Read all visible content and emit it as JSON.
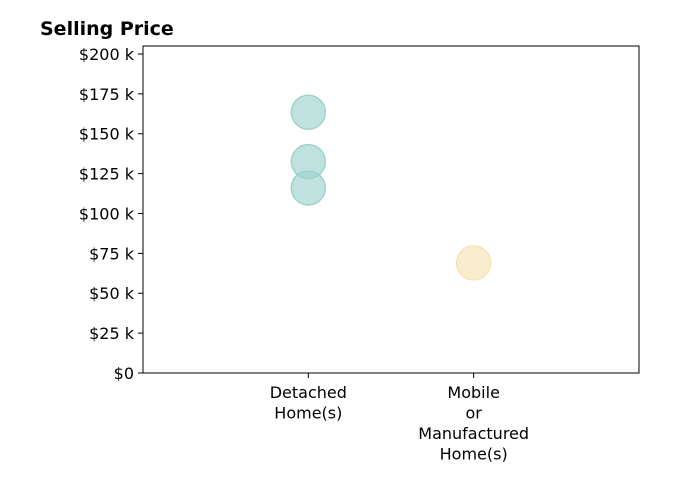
{
  "chart_data": {
    "type": "scatter",
    "title": "Selling Price",
    "xlabel": "",
    "ylabel": "",
    "categories": [
      [
        "Detached",
        "Home(s)"
      ],
      [
        "Mobile",
        "or",
        "Manufactured",
        "Home(s)"
      ]
    ],
    "x_range": [
      -1,
      2
    ],
    "ylim": [
      0,
      205000
    ],
    "y_ticks": [
      0,
      25000,
      50000,
      75000,
      100000,
      125000,
      150000,
      175000,
      200000
    ],
    "y_tick_labels": [
      "$0",
      "$25 k",
      "$50 k",
      "$75 k",
      "$100 k",
      "$125 k",
      "$150 k",
      "$175 k",
      "$200 k"
    ],
    "grid": false,
    "points": [
      {
        "category": 0,
        "y": 163500,
        "color": "#9ed3cd"
      },
      {
        "category": 0,
        "y": 132500,
        "color": "#9ed3cd"
      },
      {
        "category": 0,
        "y": 116000,
        "color": "#9ed3cd"
      },
      {
        "category": 1,
        "y": 69000,
        "color": "#f7e3b6"
      }
    ]
  }
}
